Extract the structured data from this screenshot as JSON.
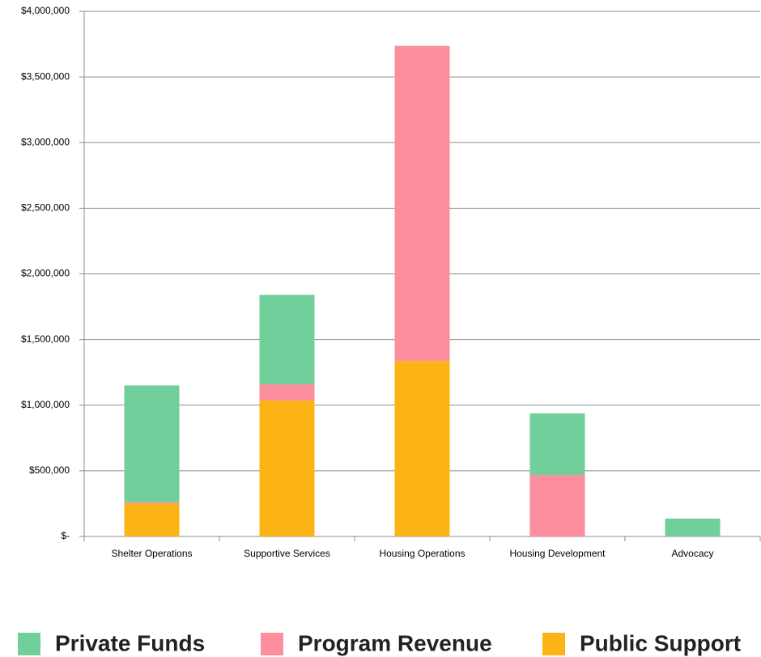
{
  "chart_data": {
    "type": "stacked_bar",
    "categories": [
      "Shelter Operations",
      "Supportive Services",
      "Housing Operations",
      "Housing Development",
      "Advocacy"
    ],
    "series": [
      {
        "name": "Private Funds",
        "color": "#70cf9a",
        "values": [
          890000,
          680000,
          0,
          470000,
          136000
        ]
      },
      {
        "name": "Program Revenue",
        "color": "#fc8e9e",
        "values": [
          10000,
          125000,
          2400000,
          468000,
          0
        ]
      },
      {
        "name": "Public Support",
        "color": "#fcb316",
        "values": [
          250000,
          1035000,
          1337000,
          0,
          0
        ]
      }
    ],
    "ylim": [
      0,
      4000000
    ],
    "yticks": [
      {
        "value": 0,
        "label": "$-"
      },
      {
        "value": 500000,
        "label": "$500,000"
      },
      {
        "value": 1000000,
        "label": "$1,000,000"
      },
      {
        "value": 1500000,
        "label": "$1,500,000"
      },
      {
        "value": 2000000,
        "label": "$2,000,000"
      },
      {
        "value": 2500000,
        "label": "$2,500,000"
      },
      {
        "value": 3000000,
        "label": "$3,000,000"
      },
      {
        "value": 3500000,
        "label": "$3,500,000"
      },
      {
        "value": 4000000,
        "label": "$4,000,000"
      }
    ],
    "grid": true,
    "legend": "bottom"
  }
}
